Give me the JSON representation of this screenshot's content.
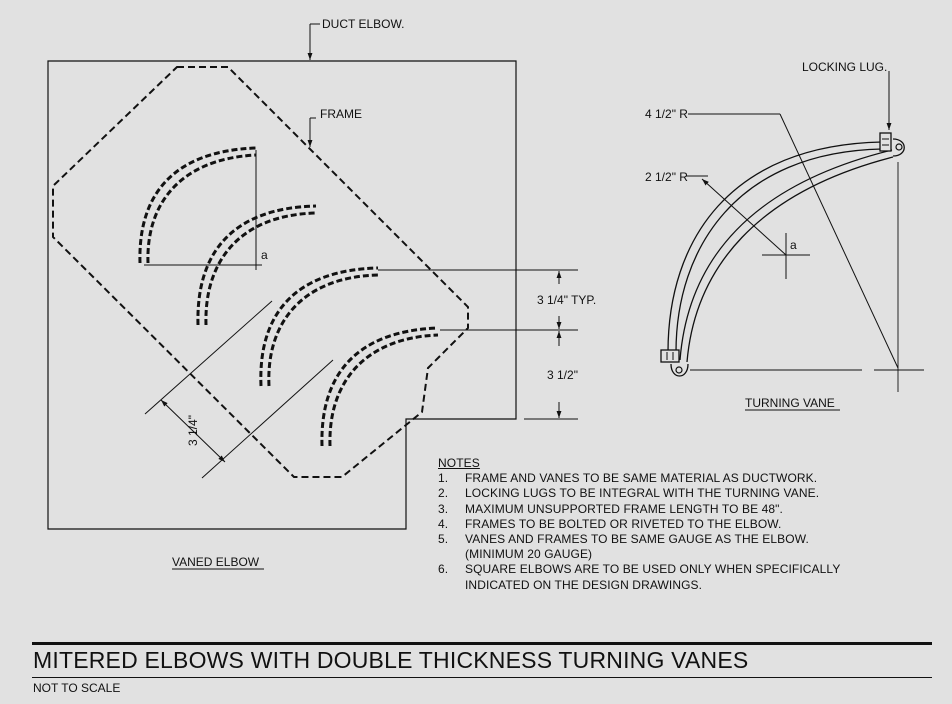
{
  "labels": {
    "duct_elbow": "DUCT ELBOW.",
    "frame": "FRAME",
    "a_left": "a",
    "typ_spacing": "3 1/4\" TYP.",
    "spacing_right": "3 1/2\"",
    "spacing_diag": "3 1/4\"",
    "vaned_elbow": "VANED ELBOW",
    "locking_lug": "LOCKING LUG.",
    "outer_radius": "4 1/2\" R",
    "inner_radius": "2 1/2\" R",
    "a_right": "a",
    "turning_vane": "TURNING VANE"
  },
  "notes": {
    "heading": "NOTES",
    "items": [
      {
        "num": "1.",
        "text": "FRAME AND VANES TO BE SAME MATERIAL AS DUCTWORK."
      },
      {
        "num": "2.",
        "text": "LOCKING LUGS TO BE INTEGRAL WITH THE TURNING VANE."
      },
      {
        "num": "3.",
        "text": "MAXIMUM UNSUPPORTED FRAME LENGTH TO BE 48\"."
      },
      {
        "num": "4.",
        "text": "FRAMES TO BE BOLTED OR RIVETED TO THE ELBOW."
      },
      {
        "num": "5.",
        "text": "VANES AND FRAMES TO BE SAME GAUGE AS THE ELBOW.",
        "sub": "(MINIMUM 20 GAUGE)"
      },
      {
        "num": "6.",
        "text": "SQUARE ELBOWS ARE TO BE USED ONLY WHEN SPECIFICALLY",
        "sub": "INDICATED ON THE DESIGN DRAWINGS."
      }
    ]
  },
  "title": "MITERED ELBOWS WITH DOUBLE THICKNESS TURNING VANES",
  "subtitle": "NOT TO SCALE",
  "colors": {
    "background": "#e1e1e1",
    "ink": "#111111"
  }
}
